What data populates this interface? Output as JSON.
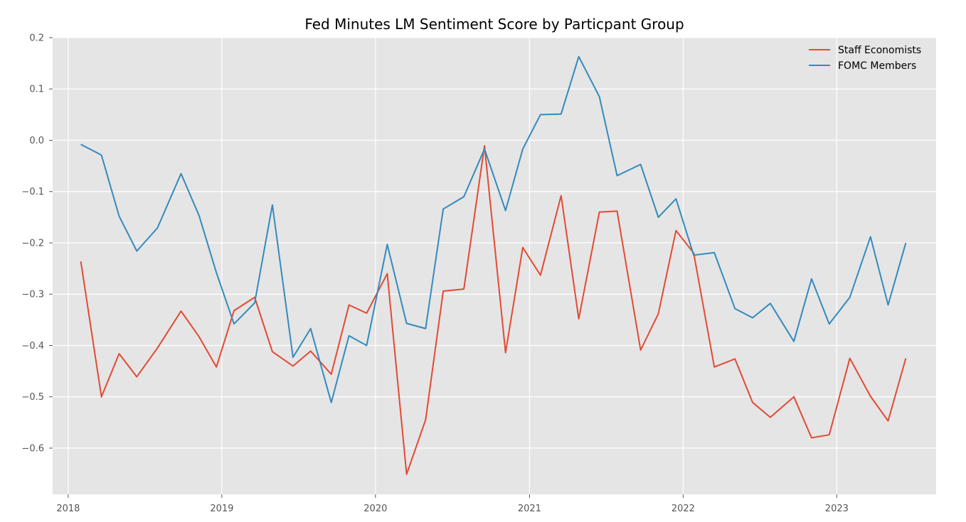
{
  "chart_data": {
    "type": "line",
    "title": "Fed Minutes LM Sentiment Score by Particpant Group",
    "xlabel": "",
    "ylabel": "",
    "x_axis_type": "date",
    "xlim": [
      "2017-11-25",
      "2023-08-25"
    ],
    "ylim": [
      -0.69,
      0.2
    ],
    "xticks": [
      "2018",
      "2019",
      "2020",
      "2021",
      "2022",
      "2023"
    ],
    "yticks": [
      "0.2",
      "0.1",
      "0.0",
      "−0.1",
      "−0.2",
      "−0.3",
      "−0.4",
      "−0.5",
      "−0.6"
    ],
    "grid": true,
    "legend_position": "top-right",
    "x": [
      "2018-01-31",
      "2018-03-21",
      "2018-05-02",
      "2018-06-13",
      "2018-08-01",
      "2018-09-26",
      "2018-11-08",
      "2018-12-19",
      "2019-01-30",
      "2019-03-20",
      "2019-05-01",
      "2019-06-19",
      "2019-07-31",
      "2019-09-18",
      "2019-10-30",
      "2019-12-11",
      "2020-01-29",
      "2020-03-15",
      "2020-04-29",
      "2020-06-10",
      "2020-07-29",
      "2020-09-16",
      "2020-11-05",
      "2020-12-16",
      "2021-01-27",
      "2021-03-17",
      "2021-04-28",
      "2021-06-16",
      "2021-07-28",
      "2021-09-22",
      "2021-11-03",
      "2021-12-15",
      "2022-01-26",
      "2022-03-16",
      "2022-05-04",
      "2022-06-15",
      "2022-07-27",
      "2022-09-21",
      "2022-11-02",
      "2022-12-14",
      "2023-02-01",
      "2023-03-22",
      "2023-05-03",
      "2023-06-14"
    ],
    "series": [
      {
        "name": "Staff Economists",
        "color": "#e24a33",
        "values": [
          -0.236,
          -0.5,
          -0.416,
          -0.461,
          -0.405,
          -0.333,
          -0.383,
          -0.442,
          -0.332,
          -0.306,
          -0.412,
          -0.44,
          -0.411,
          -0.456,
          -0.321,
          -0.337,
          -0.26,
          -0.651,
          -0.545,
          -0.294,
          -0.29,
          -0.011,
          -0.414,
          -0.209,
          -0.263,
          -0.108,
          -0.348,
          -0.14,
          -0.138,
          -0.409,
          -0.338,
          -0.176,
          -0.22,
          -0.442,
          -0.426,
          -0.511,
          -0.54,
          -0.5,
          -0.58,
          -0.574,
          -0.425,
          -0.499,
          -0.547,
          -0.425
        ]
      },
      {
        "name": "FOMC Members",
        "color": "#348abd",
        "values": [
          -0.008,
          -0.029,
          -0.148,
          -0.216,
          -0.171,
          -0.065,
          -0.147,
          -0.258,
          -0.358,
          -0.317,
          -0.126,
          -0.423,
          -0.367,
          -0.511,
          -0.381,
          -0.4,
          -0.203,
          -0.357,
          -0.367,
          -0.134,
          -0.11,
          -0.017,
          -0.137,
          -0.017,
          0.05,
          0.051,
          0.163,
          0.085,
          -0.069,
          -0.047,
          -0.15,
          -0.114,
          -0.224,
          -0.219,
          -0.328,
          -0.346,
          -0.318,
          -0.392,
          -0.27,
          -0.358,
          -0.306,
          -0.188,
          -0.321,
          -0.2
        ]
      }
    ]
  },
  "colors": {
    "plot_background": "#e5e5e5",
    "grid": "#ffffff",
    "tick_text": "#555555"
  }
}
